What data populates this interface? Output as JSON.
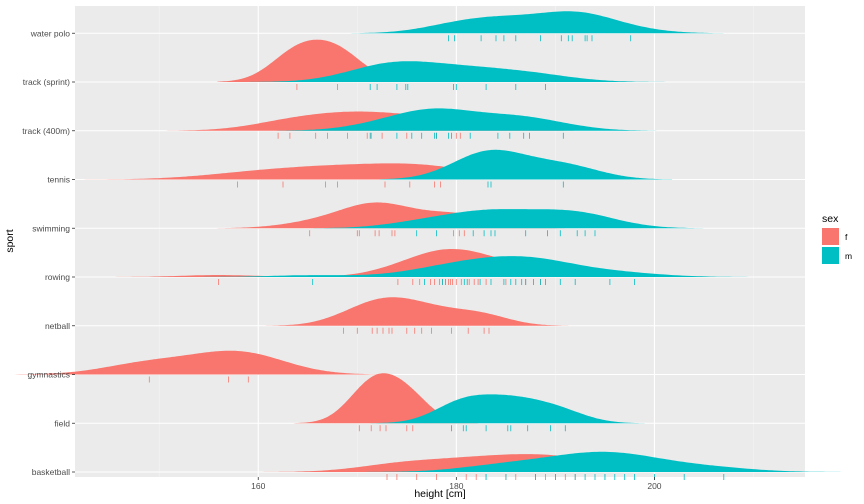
{
  "chart_data": {
    "type": "ridgeline",
    "xlabel": "height [cm]",
    "ylabel": "sport",
    "xlim": [
      141.5,
      215.2
    ],
    "x_ticks": [
      160,
      180,
      200
    ],
    "categories": [
      "basketball",
      "field",
      "gymnastics",
      "netball",
      "rowing",
      "swimming",
      "tennis",
      "track (400m)",
      "track (sprint)",
      "water polo"
    ],
    "legend": {
      "title": "sex",
      "position": "right",
      "entries": [
        {
          "key": "f",
          "label": "f",
          "color": "#F8766D"
        },
        {
          "key": "m",
          "label": "m",
          "color": "#00BFC4"
        }
      ]
    },
    "grid": true,
    "series": {
      "f": {
        "basketball": [
          173,
          174,
          176,
          178,
          181,
          182,
          183,
          185,
          186,
          188,
          189,
          190,
          191,
          192,
          195
        ],
        "field": [
          170.2,
          171.4,
          172.3,
          172.9,
          175.0,
          175.6
        ],
        "gymnastics": [
          149.0,
          157.0,
          159.0
        ],
        "netball": [
          168.6,
          170.0,
          171.5,
          172.0,
          172.6,
          173.2,
          173.5,
          175.0,
          175.8,
          176.5,
          177.5,
          179.5,
          181.2,
          182.8,
          183.3
        ],
        "rowing": [
          156.0,
          174.1,
          175.6,
          176.3,
          177.4,
          177.8,
          178.3,
          178.6,
          179.2,
          179.4,
          179.6,
          180.0,
          180.5,
          181.3,
          181.8,
          182.2,
          183.0,
          185.0,
          187.0,
          188.5
        ],
        "swimming": [
          165.2,
          170.0,
          170.2,
          171.8,
          172.2,
          173.5,
          173.8,
          179.7,
          180.3,
          180.8
        ],
        "tennis": [
          157.9,
          162.5,
          166.8,
          168.0,
          172.8,
          175.3,
          177.8,
          178.4
        ],
        "track (400m)": [
          162.0,
          163.2,
          165.8,
          167.0,
          169.0,
          171.0,
          171.4,
          172.5,
          175.0,
          178.0,
          180.0,
          180.4
        ],
        "track (sprint)": [
          163.9,
          168.0
        ]
      },
      "m": {
        "basketball": [
          183,
          185,
          188,
          190,
          192,
          193,
          194,
          195,
          196,
          197,
          198,
          200,
          203,
          207
        ],
        "field": [
          179.5,
          180.7,
          181.0,
          183.0,
          185.2,
          185.5,
          187.2,
          189.5,
          191.0
        ],
        "rowing": [
          165.5,
          176.8,
          178.6,
          178.9,
          180.8,
          181.1,
          182.4,
          183.5,
          184.8,
          185.5,
          186.0,
          186.6,
          187.0,
          187.8,
          188.5,
          189.0,
          190.5,
          192.0,
          195.5,
          198.0
        ],
        "swimming": [
          176.0,
          178.0,
          181.7,
          182.8,
          183.5,
          183.9,
          187.0,
          189.2,
          190.5,
          192.2,
          193.0,
          194.0
        ],
        "tennis": [
          183.2,
          183.5,
          190.8
        ],
        "track (400m)": [
          171.3,
          174.0,
          175.5,
          176.5,
          177.8,
          178.0,
          179.2,
          179.5,
          181.4,
          184.2,
          185.4,
          186.8,
          187.4,
          190.8
        ],
        "track (sprint)": [
          171.3,
          172.0,
          174.0,
          174.9,
          175.1,
          179.7,
          180.0,
          183.0,
          186.0,
          189.0
        ],
        "water polo": [
          179.2,
          179.8,
          182.5,
          184.0,
          184.8,
          186.0,
          188.5,
          190.6,
          191.3,
          191.7,
          193.0,
          193.2,
          193.7,
          197.6
        ]
      }
    }
  }
}
